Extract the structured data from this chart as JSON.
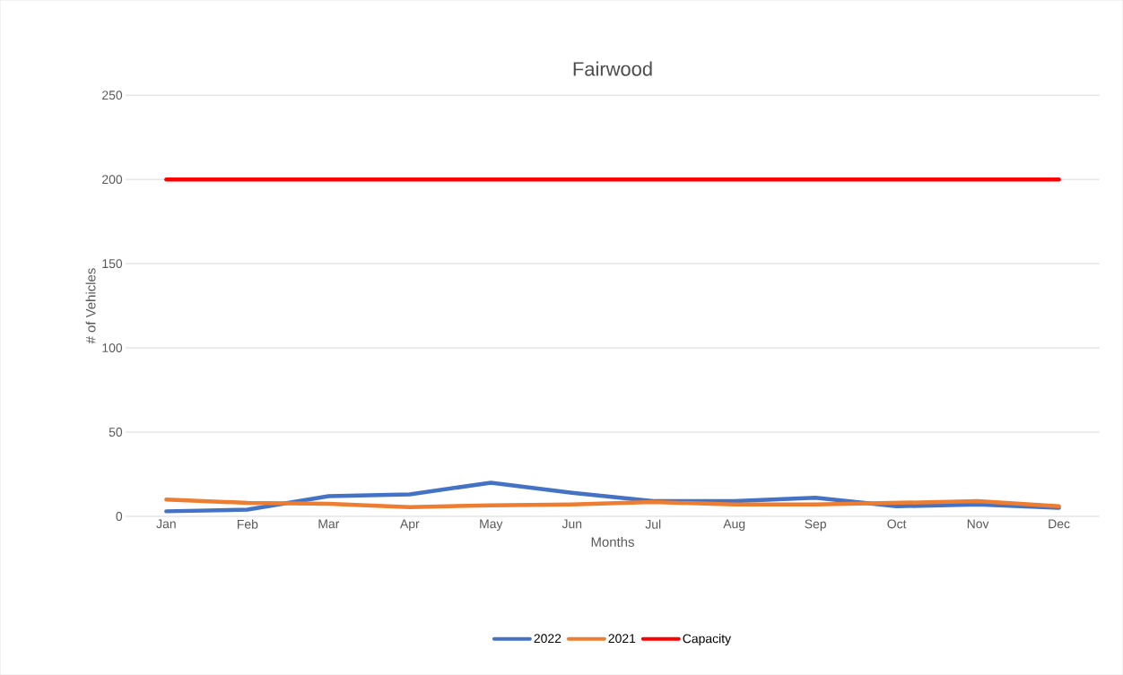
{
  "chart_data": {
    "type": "line",
    "title": "Fairwood",
    "xlabel": "Months",
    "ylabel": "# of Vehicles",
    "categories": [
      "Jan",
      "Feb",
      "Mar",
      "Apr",
      "May",
      "Jun",
      "Jul",
      "Aug",
      "Sep",
      "Oct",
      "Nov",
      "Dec"
    ],
    "series": [
      {
        "name": "2022",
        "color": "#4472c4",
        "values": [
          3,
          4,
          12,
          13,
          20,
          14,
          9,
          9,
          11,
          6,
          7,
          5
        ]
      },
      {
        "name": "2021",
        "color": "#ed7d31",
        "values": [
          10,
          8,
          7.5,
          5.5,
          6.5,
          7,
          8.5,
          7,
          7,
          8,
          9,
          6
        ]
      },
      {
        "name": "Capacity",
        "color": "#ff0000",
        "values": [
          200,
          200,
          200,
          200,
          200,
          200,
          200,
          200,
          200,
          200,
          200,
          200
        ]
      }
    ],
    "ylim": [
      0,
      250
    ],
    "yticks": [
      0,
      50,
      100,
      150,
      200,
      250
    ],
    "grid": "y",
    "legend": "bottom",
    "marker": "none",
    "line_style": "solid"
  }
}
